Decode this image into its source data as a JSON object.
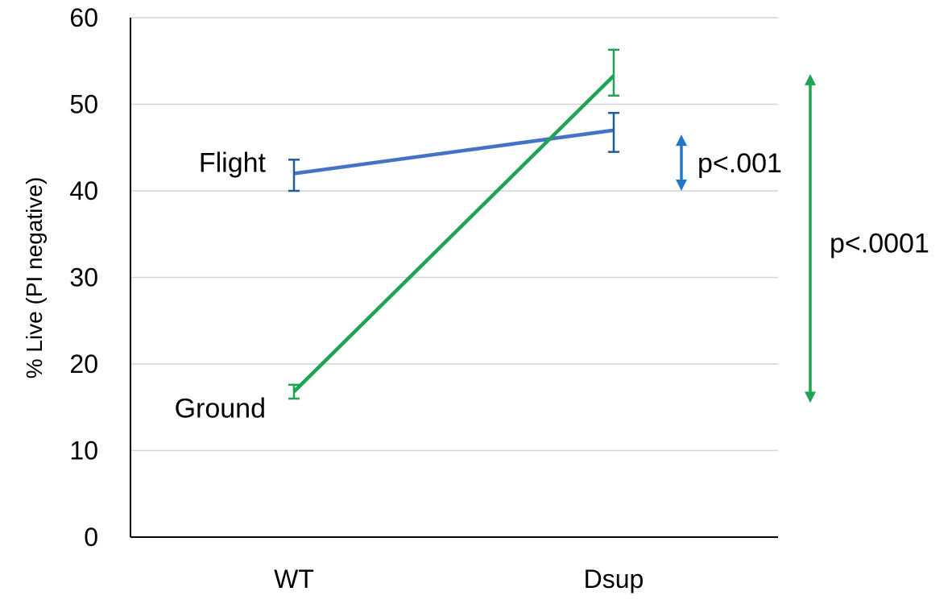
{
  "chart_data": {
    "type": "line",
    "categories": [
      "WT",
      "Dsup"
    ],
    "ylabel": "% Live (PI negative)",
    "ylim": [
      0,
      60
    ],
    "yticks": [
      0,
      10,
      20,
      30,
      40,
      50,
      60
    ],
    "grid": true,
    "series": [
      {
        "name": "Flight",
        "color": "#4472C4",
        "errcolor": "#1F5C99",
        "values": [
          42,
          47
        ],
        "err_low": [
          40,
          44.5
        ],
        "err_high": [
          43.6,
          49
        ]
      },
      {
        "name": "Ground",
        "color": "#1FA355",
        "errcolor": "#1FA355",
        "values": [
          16.8,
          53.3
        ],
        "err_low": [
          16,
          51
        ],
        "err_high": [
          17.6,
          56.3
        ]
      }
    ],
    "annotations": [
      {
        "text": "p<.001",
        "color": "#1F78C8",
        "y_from": 40,
        "y_to": 46.5
      },
      {
        "text": "p<.0001",
        "color": "#1FA355",
        "y_from": 15.5,
        "y_to": 53.5
      }
    ]
  }
}
